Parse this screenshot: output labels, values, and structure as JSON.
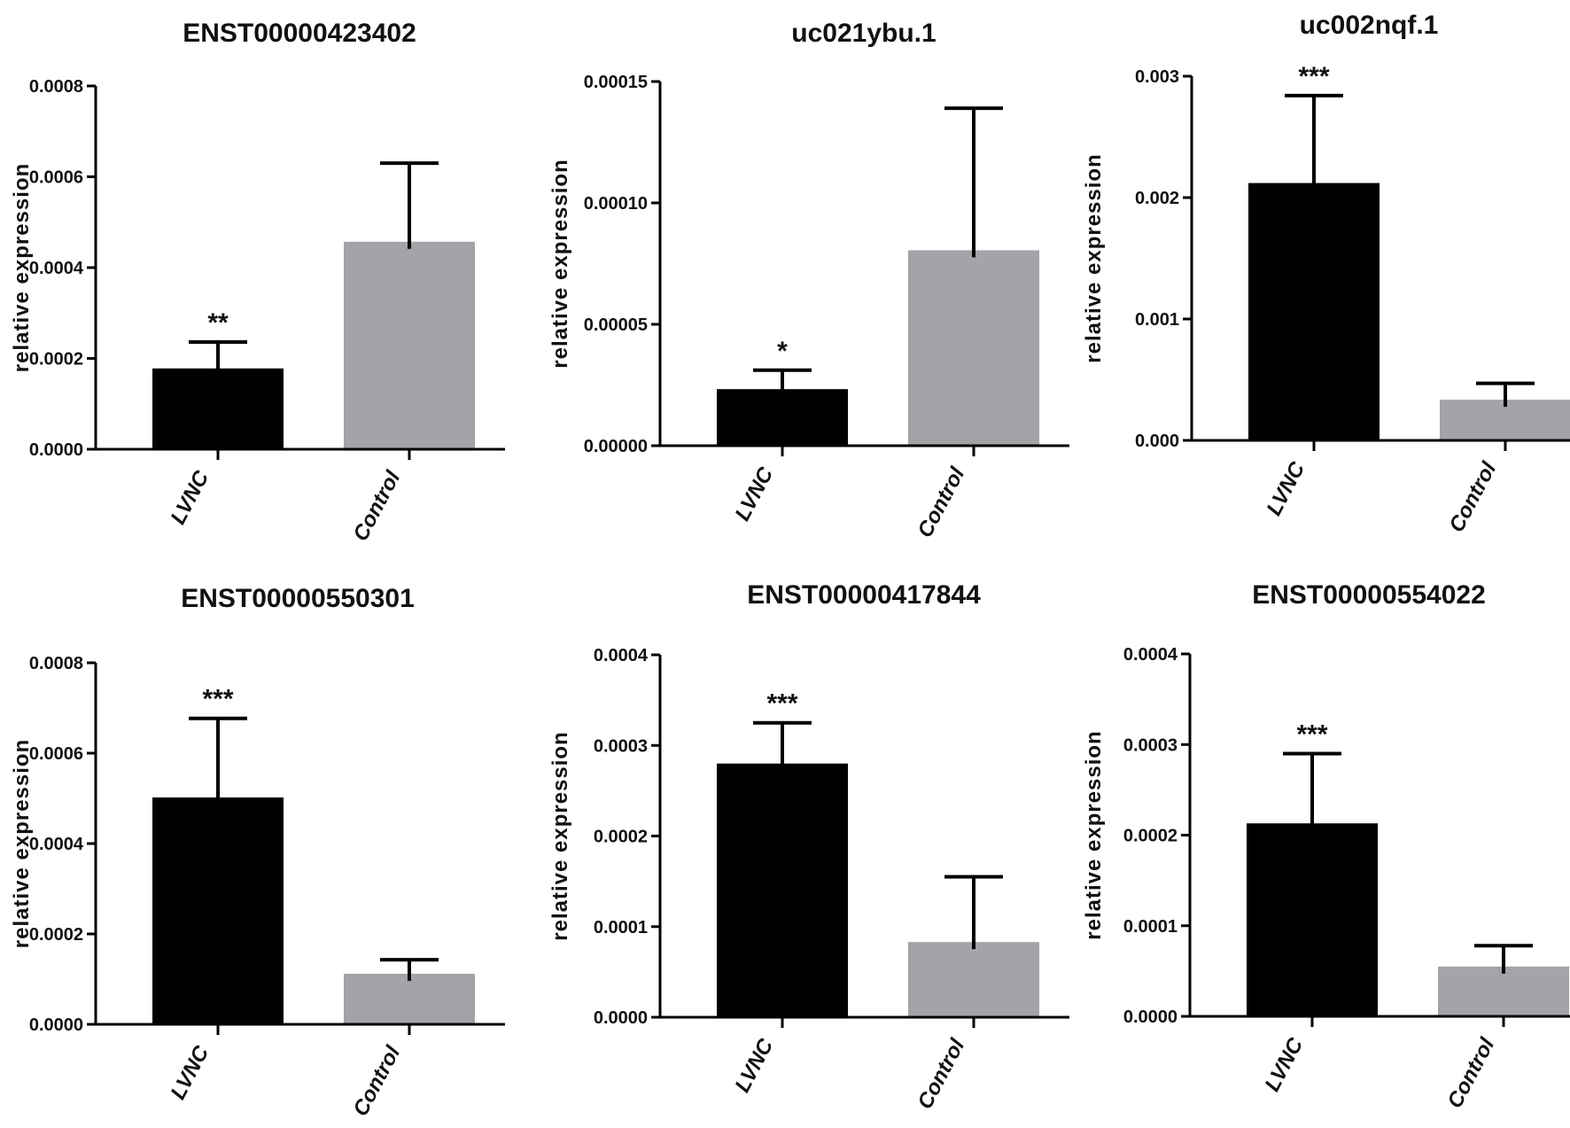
{
  "colors": {
    "LVNC": "#000000",
    "Control": "#a3a3a8"
  },
  "chart_data": [
    {
      "type": "bar",
      "title": "ENST00000423402",
      "ylabel": "relative expression",
      "categories": [
        "LVNC",
        "Control"
      ],
      "values": [
        0.000178,
        0.000457
      ],
      "errors": [
        5.8e-05,
        0.000173
      ],
      "significance": [
        "**",
        ""
      ],
      "ylim": [
        0,
        0.0008
      ],
      "yticks": [
        0,
        0.0002,
        0.0004,
        0.0006,
        0.0008
      ],
      "ytick_labels": [
        "0.0000",
        "0.0002",
        "0.0004",
        "0.0006",
        "0.0008"
      ]
    },
    {
      "type": "bar",
      "title": "uc021ybu.1",
      "ylabel": "relative expression",
      "categories": [
        "LVNC",
        "Control"
      ],
      "values": [
        2.33e-05,
        8.05e-05
      ],
      "errors": [
        7.8e-06,
        5.85e-05
      ],
      "significance": [
        "*",
        ""
      ],
      "ylim": [
        0,
        0.00015
      ],
      "yticks": [
        0,
        5e-05,
        0.0001,
        0.00015
      ],
      "ytick_labels": [
        "0.00000",
        "0.00005",
        "0.00010",
        "0.00015"
      ]
    },
    {
      "type": "bar",
      "title": "uc002nqf.1",
      "ylabel": "relative expression",
      "categories": [
        "LVNC",
        "Control"
      ],
      "values": [
        0.00212,
        0.000335
      ],
      "errors": [
        0.00072,
        0.000135
      ],
      "significance": [
        "***",
        ""
      ],
      "ylim": [
        0,
        0.003
      ],
      "yticks": [
        0,
        0.001,
        0.002,
        0.003
      ],
      "ytick_labels": [
        "0.000",
        "0.001",
        "0.002",
        "0.003"
      ]
    },
    {
      "type": "bar",
      "title": "ENST00000550301",
      "ylabel": "relative expression",
      "categories": [
        "LVNC",
        "Control"
      ],
      "values": [
        0.000502,
        0.000112
      ],
      "errors": [
        0.000175,
        3.1e-05
      ],
      "significance": [
        "***",
        ""
      ],
      "ylim": [
        0,
        0.0008
      ],
      "yticks": [
        0,
        0.0002,
        0.0004,
        0.0006,
        0.0008
      ],
      "ytick_labels": [
        "0.0000",
        "0.0002",
        "0.0004",
        "0.0006",
        "0.0008"
      ]
    },
    {
      "type": "bar",
      "title": "ENST00000417844",
      "ylabel": "relative expression",
      "categories": [
        "LVNC",
        "Control"
      ],
      "values": [
        0.00028,
        8.3e-05
      ],
      "errors": [
        4.5e-05,
        7.2e-05
      ],
      "significance": [
        "***",
        ""
      ],
      "ylim": [
        0,
        0.0004
      ],
      "yticks": [
        0,
        0.0001,
        0.0002,
        0.0003,
        0.0004
      ],
      "ytick_labels": [
        "0.0000",
        "0.0001",
        "0.0002",
        "0.0003",
        "0.0004"
      ]
    },
    {
      "type": "bar",
      "title": "ENST00000554022",
      "ylabel": "relative expression",
      "categories": [
        "LVNC",
        "Control"
      ],
      "values": [
        0.000213,
        5.5e-05
      ],
      "errors": [
        7.7e-05,
        2.3e-05
      ],
      "significance": [
        "***",
        ""
      ],
      "ylim": [
        0,
        0.0004
      ],
      "yticks": [
        0,
        0.0001,
        0.0002,
        0.0003,
        0.0004
      ],
      "ytick_labels": [
        "0.0000",
        "0.0001",
        "0.0002",
        "0.0003",
        "0.0004"
      ]
    }
  ]
}
